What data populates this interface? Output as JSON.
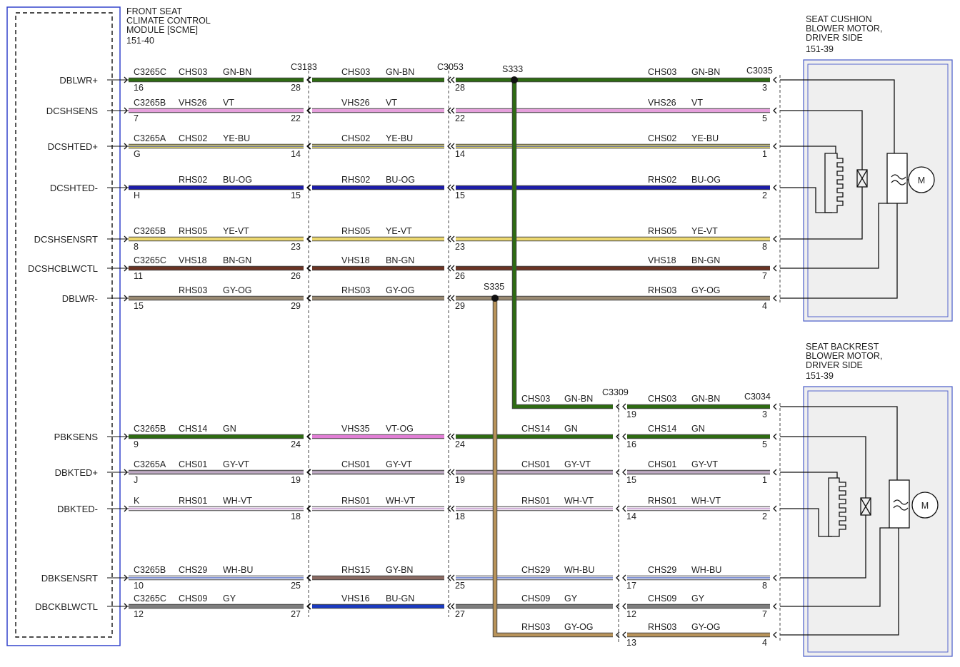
{
  "module": {
    "title": [
      "FRONT SEAT",
      "CLIMATE CONTROL",
      "MODULE [SCME]"
    ],
    "ref": "151-40"
  },
  "cushion_motor": {
    "title": [
      "SEAT CUSHION",
      "BLOWER MOTOR,",
      "DRIVER SIDE"
    ],
    "ref": "151-39"
  },
  "backrest_motor": {
    "title": [
      "SEAT BACKREST",
      "BLOWER MOTOR,",
      "DRIVER SIDE"
    ],
    "ref": "151-39"
  },
  "motor_symbol": "M",
  "connectors": {
    "c3133": "C3133",
    "c3053": "C3053",
    "c3035": "C3035",
    "c3309": "C3309",
    "c3034": "C3034"
  },
  "splices": {
    "s333": "S333",
    "s335": "S335"
  },
  "rows": [
    {
      "signal": "DBLWR+",
      "module_c3133": {
        "connector": "C3265C",
        "circuit": "CHS03",
        "color": "GN-BN",
        "stroke": "#2e6b12",
        "left_pin": "16",
        "right_pin": "28"
      },
      "c3133_c3053": {
        "circuit": "CHS03",
        "color": "GN-BN",
        "stroke": "#2e6b12"
      },
      "c3053_c3035": {
        "circuit": "CHS03",
        "color": "GN-BN",
        "stroke": "#2e6b12",
        "left_pin": "28",
        "right_pin": "3"
      }
    },
    {
      "signal": "DCSHSENS",
      "module_c3133": {
        "connector": "C3265B",
        "circuit": "VHS26",
        "color": "VT",
        "stroke": "#e6a0dc",
        "left_pin": "7",
        "right_pin": "22"
      },
      "c3133_c3053": {
        "circuit": "VHS26",
        "color": "VT",
        "stroke": "#e6a0dc"
      },
      "c3053_c3035": {
        "circuit": "VHS26",
        "color": "VT",
        "stroke": "#e6a0dc",
        "left_pin": "22",
        "right_pin": "5"
      }
    },
    {
      "signal": "DCSHTED+",
      "module_c3133": {
        "connector": "C3265A",
        "circuit": "CHS02",
        "color": "YE-BU",
        "stroke": "#ecdc6c",
        "stripe": "#5060a0",
        "left_pin": "G",
        "right_pin": "14"
      },
      "c3133_c3053": {
        "circuit": "CHS02",
        "color": "YE-BU",
        "stroke": "#ecdc6c",
        "stripe": "#5060a0"
      },
      "c3053_c3035": {
        "circuit": "CHS02",
        "color": "YE-BU",
        "stroke": "#ecdc6c",
        "stripe": "#5060a0",
        "left_pin": "14",
        "right_pin": "1"
      }
    },
    {
      "signal": "DCSHTED-",
      "module_c3133": {
        "circuit": "RHS02",
        "color": "BU-OG",
        "stroke": "#1c1ca8",
        "left_pin": "H",
        "right_pin": "15"
      },
      "c3133_c3053": {
        "circuit": "RHS02",
        "color": "BU-OG",
        "stroke": "#1c1ca8"
      },
      "c3053_c3035": {
        "circuit": "RHS02",
        "color": "BU-OG",
        "stroke": "#1c1ca8",
        "left_pin": "15",
        "right_pin": "2"
      }
    },
    {
      "signal": "DCSHSENSRT",
      "module_c3133": {
        "connector": "C3265B",
        "circuit": "RHS05",
        "color": "YE-VT",
        "stroke": "#ecd870",
        "left_pin": "8",
        "right_pin": "23"
      },
      "c3133_c3053": {
        "circuit": "RHS05",
        "color": "YE-VT",
        "stroke": "#ecd870"
      },
      "c3053_c3035": {
        "circuit": "RHS05",
        "color": "YE-VT",
        "stroke": "#ecd870",
        "left_pin": "23",
        "right_pin": "8"
      }
    },
    {
      "signal": "DCSHCBLWCTL",
      "module_c3133": {
        "connector": "C3265C",
        "circuit": "VHS18",
        "color": "BN-GN",
        "stroke": "#6b3424",
        "left_pin": "11",
        "right_pin": "26"
      },
      "c3133_c3053": {
        "circuit": "VHS18",
        "color": "BN-GN",
        "stroke": "#6b3424"
      },
      "c3053_c3035": {
        "circuit": "VHS18",
        "color": "BN-GN",
        "stroke": "#6b3424",
        "left_pin": "26",
        "right_pin": "7"
      }
    },
    {
      "signal": "DBLWR-",
      "module_c3133": {
        "circuit": "RHS03",
        "color": "GY-OG",
        "stroke": "#9a8a72",
        "left_pin": "15",
        "right_pin": "29"
      },
      "c3133_c3053": {
        "circuit": "RHS03",
        "color": "GY-OG",
        "stroke": "#9a8a72"
      },
      "c3053_c3035": {
        "circuit": "RHS03",
        "color": "GY-OG",
        "stroke": "#9a8a72",
        "left_pin": "29",
        "right_pin": "4"
      }
    },
    {
      "s333_c3309": {
        "circuit": "CHS03",
        "color": "GN-BN",
        "stroke": "#2e6b12"
      },
      "c3309_c3034": {
        "circuit": "CHS03",
        "color": "GN-BN",
        "stroke": "#2e6b12",
        "left_pin": "19",
        "right_pin": "3"
      }
    },
    {
      "signal": "PBKSENS",
      "module_c3133": {
        "connector": "C3265B",
        "circuit": "CHS14",
        "color": "GN",
        "stroke": "#2e6b12",
        "left_pin": "9",
        "right_pin": "24"
      },
      "c3133_c3053": {
        "circuit": "VHS35",
        "color": "VT-OG",
        "stroke": "#e27ed6"
      },
      "c3053_c3309": {
        "circuit": "CHS14",
        "color": "GN",
        "stroke": "#2e6b12",
        "left_pin": "24"
      },
      "c3309_c3034": {
        "circuit": "CHS14",
        "color": "GN",
        "stroke": "#2e6b12",
        "left_pin": "16",
        "right_pin": "5"
      }
    },
    {
      "signal": "DBKTED+",
      "module_c3133": {
        "connector": "C3265A",
        "circuit": "CHS01",
        "color": "GY-VT",
        "stroke": "#a698a8",
        "stripe": "#c8b0d0",
        "left_pin": "J",
        "right_pin": "19"
      },
      "c3133_c3053": {
        "circuit": "CHS01",
        "color": "GY-VT",
        "stroke": "#a698a8",
        "stripe": "#c8b0d0"
      },
      "c3053_c3309": {
        "circuit": "CHS01",
        "color": "GY-VT",
        "stroke": "#a698a8",
        "stripe": "#c8b0d0",
        "left_pin": "19"
      },
      "c3309_c3034": {
        "circuit": "CHS01",
        "color": "GY-VT",
        "stroke": "#a698a8",
        "stripe": "#c8b0d0",
        "left_pin": "15",
        "right_pin": "1"
      }
    },
    {
      "signal": "DBKTED-",
      "module_c3133": {
        "connector": "K",
        "circuit": "RHS01",
        "color": "WH-VT",
        "stroke": "#f2eaf4",
        "stripe": "#c8a0d0",
        "right_pin": "18"
      },
      "c3133_c3053": {
        "circuit": "RHS01",
        "color": "WH-VT",
        "stroke": "#f2eaf4",
        "stripe": "#c8a0d0"
      },
      "c3053_c3309": {
        "circuit": "RHS01",
        "color": "WH-VT",
        "stroke": "#f2eaf4",
        "stripe": "#c8a0d0",
        "left_pin": "18"
      },
      "c3309_c3034": {
        "circuit": "RHS01",
        "color": "WH-VT",
        "stroke": "#f2eaf4",
        "stripe": "#c8a0d0",
        "left_pin": "14",
        "right_pin": "2"
      }
    },
    {
      "signal": "DBKSENSRT",
      "module_c3133": {
        "connector": "C3265B",
        "circuit": "CHS29",
        "color": "WH-BU",
        "stroke": "#f4f4fa",
        "stripe": "#5870c8",
        "left_pin": "10",
        "right_pin": "25"
      },
      "c3133_c3053": {
        "circuit": "RHS15",
        "color": "GY-BN",
        "stroke": "#8a6a62"
      },
      "c3053_c3309": {
        "circuit": "CHS29",
        "color": "WH-BU",
        "stroke": "#f4f4fa",
        "stripe": "#5870c8",
        "left_pin": "25"
      },
      "c3309_c3034": {
        "circuit": "CHS29",
        "color": "WH-BU",
        "stroke": "#f4f4fa",
        "stripe": "#5870c8",
        "left_pin": "17",
        "right_pin": "8"
      }
    },
    {
      "signal": "DBCKBLWCTL",
      "module_c3133": {
        "connector": "C3265C",
        "circuit": "CHS09",
        "color": "GY",
        "stroke": "#7e7e7e",
        "left_pin": "12",
        "right_pin": "27"
      },
      "c3133_c3053": {
        "circuit": "VHS16",
        "color": "BU-GN",
        "stroke": "#1a3ac0"
      },
      "c3053_c3309": {
        "circuit": "CHS09",
        "color": "GY",
        "stroke": "#7e7e7e",
        "left_pin": "27"
      },
      "c3309_c3034": {
        "circuit": "CHS09",
        "color": "GY",
        "stroke": "#7e7e7e",
        "left_pin": "12",
        "right_pin": "7"
      }
    },
    {
      "s335_c3309": {
        "circuit": "RHS03",
        "color": "GY-OG",
        "stroke": "#b8935a"
      },
      "c3309_c3034": {
        "circuit": "RHS03",
        "color": "GY-OG",
        "stroke": "#b8935a",
        "left_pin": "13",
        "right_pin": "4"
      }
    }
  ]
}
